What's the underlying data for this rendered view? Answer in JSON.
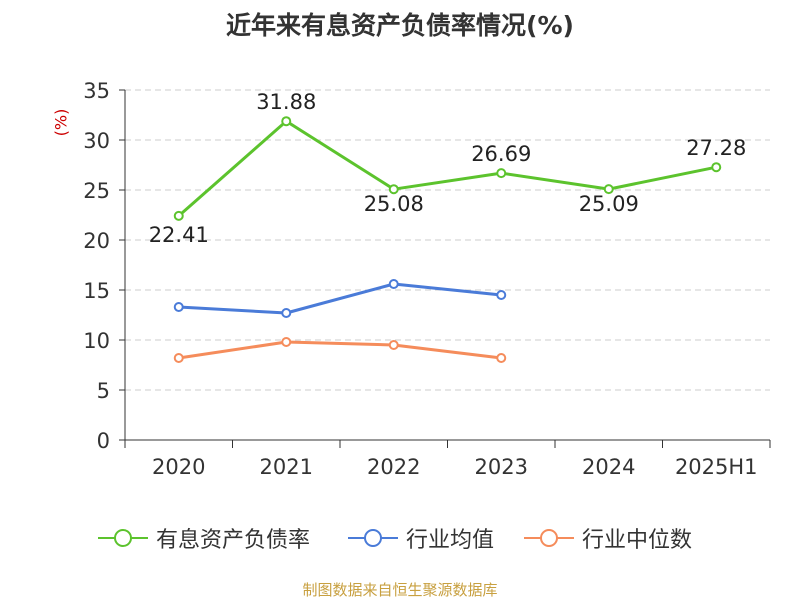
{
  "title": "近年来有息资产负债率情况(%)",
  "source": "制图数据来自恒生聚源数据库",
  "chart_data": {
    "type": "line",
    "title": "近年来有息资产负债率情况(%)",
    "ylabel": "(%)",
    "xlabel": "",
    "categories": [
      "2020",
      "2021",
      "2022",
      "2023",
      "2024",
      "2025H1"
    ],
    "ylim": [
      0,
      35
    ],
    "yticks": [
      0,
      5,
      10,
      15,
      20,
      25,
      30,
      35
    ],
    "grid": "horizontal-dashed",
    "legend_position": "bottom",
    "series": [
      {
        "name": "有息资产负债率",
        "color": "#5cc32d",
        "values": [
          22.41,
          31.88,
          25.08,
          26.69,
          25.09,
          27.28
        ],
        "labels": [
          "22.41",
          "31.88",
          "25.08",
          "26.69",
          "25.09",
          "27.28"
        ]
      },
      {
        "name": "行业均值",
        "color": "#4a7bd8",
        "values": [
          13.3,
          12.7,
          15.6,
          14.5,
          null,
          null
        ]
      },
      {
        "name": "行业中位数",
        "color": "#f58c5b",
        "values": [
          8.2,
          9.8,
          9.5,
          8.2,
          null,
          null
        ]
      }
    ]
  }
}
